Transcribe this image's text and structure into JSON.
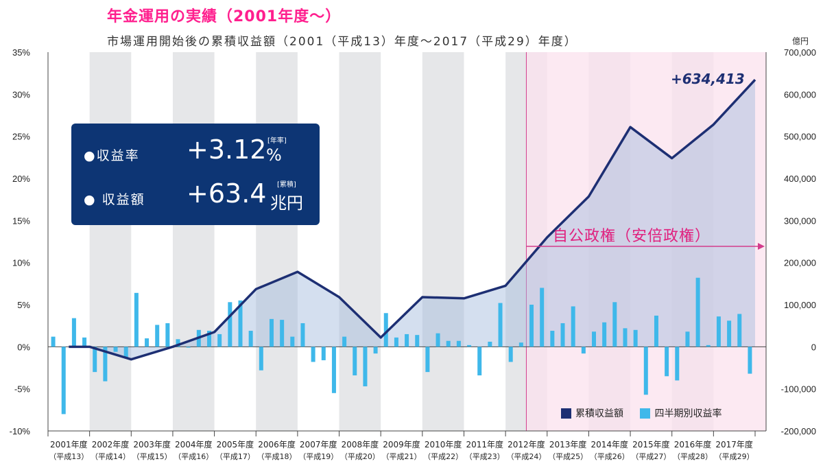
{
  "header": {
    "title": "年金運用の実績（2001年度〜）",
    "subtitle": "市場運用開始後の累積収益額（2001（平成13）年度〜2017（平成29）年度）",
    "right_unit": "億円"
  },
  "infobox": {
    "rate_label": "●収益率",
    "rate_value": "+3.12",
    "rate_unit": "%",
    "rate_note": "[年率]",
    "amount_label": "● 収益額",
    "amount_value": "+63.4",
    "amount_unit": "兆円",
    "amount_note": "[累積]"
  },
  "annotations": {
    "cumulative_end": "+634,413",
    "period": "自公政権（安倍政権）"
  },
  "legend": {
    "cumulative": "累積収益額",
    "quarterly": "四半期別収益率"
  },
  "colors": {
    "line": "#1d2f73",
    "bar": "#3fb8ea",
    "area": "#c8dff0",
    "shade": "#e6e7e9",
    "period": "#fbe1ee",
    "period_line": "#d33c8c",
    "infobox": "#0d3574",
    "title": "#ff1f8e"
  },
  "chart_data": {
    "type": "bar",
    "x_labels": [
      {
        "year": "2001年度",
        "era": "（平成13）"
      },
      {
        "year": "2002年度",
        "era": "（平成14）"
      },
      {
        "year": "2003年度",
        "era": "（平成15）"
      },
      {
        "year": "2004年度",
        "era": "（平成16）"
      },
      {
        "year": "2005年度",
        "era": "（平成17）"
      },
      {
        "year": "2006年度",
        "era": "（平成18）"
      },
      {
        "year": "2007年度",
        "era": "（平成19）"
      },
      {
        "year": "2008年度",
        "era": "（平成20）"
      },
      {
        "year": "2009年度",
        "era": "（平成21）"
      },
      {
        "year": "2010年度",
        "era": "（平成22）"
      },
      {
        "year": "2011年度",
        "era": "（平成23）"
      },
      {
        "year": "2012年度",
        "era": "（平成24）"
      },
      {
        "year": "2013年度",
        "era": "（平成25）"
      },
      {
        "year": "2014年度",
        "era": "（平成26）"
      },
      {
        "year": "2015年度",
        "era": "（平成27）"
      },
      {
        "year": "2016年度",
        "era": "（平成28）"
      },
      {
        "year": "2017年度",
        "era": "（平成29）"
      }
    ],
    "left_axis": {
      "ylim": [
        -10,
        35
      ],
      "ticks": [
        "-10%",
        "-5%",
        "0%",
        "5%",
        "10%",
        "15%",
        "20%",
        "25%",
        "30%",
        "35%"
      ]
    },
    "right_axis": {
      "ylim": [
        -200000,
        700000
      ],
      "ticks": [
        "-200,000",
        "-100,000",
        "0",
        "100,000",
        "200,000",
        "300,000",
        "400,000",
        "500,000",
        "600,000",
        "700,000"
      ]
    },
    "quarterly_rate": [
      1.2,
      -8.0,
      3.4,
      1.1,
      -3.0,
      -4.1,
      -0.6,
      -1.3,
      6.4,
      1.0,
      2.6,
      2.8,
      0.9,
      -0.1,
      2.0,
      1.9,
      1.5,
      5.3,
      5.5,
      1.9,
      -2.8,
      3.3,
      3.2,
      1.2,
      2.8,
      -1.8,
      -1.6,
      -5.5,
      1.2,
      -3.4,
      -4.7,
      -0.8,
      4.0,
      1.1,
      1.5,
      1.4,
      -3.0,
      1.6,
      0.7,
      0.7,
      0.2,
      -3.4,
      0.6,
      5.2,
      -1.8,
      0.5,
      5.0,
      7.0,
      1.9,
      2.8,
      4.8,
      -0.8,
      1.8,
      2.9,
      5.3,
      2.2,
      2.0,
      -5.7,
      3.7,
      -3.5,
      -4.0,
      1.8,
      8.2,
      0.2,
      3.6,
      3.1,
      3.9,
      -3.2
    ],
    "cumulative_year_end": [
      0,
      -30000,
      0,
      35000,
      137000,
      178000,
      118000,
      22000,
      118000,
      115000,
      145000,
      260000,
      357000,
      522000,
      448000,
      528000,
      634413
    ],
    "period_label": "自公政権（安倍政権）"
  }
}
